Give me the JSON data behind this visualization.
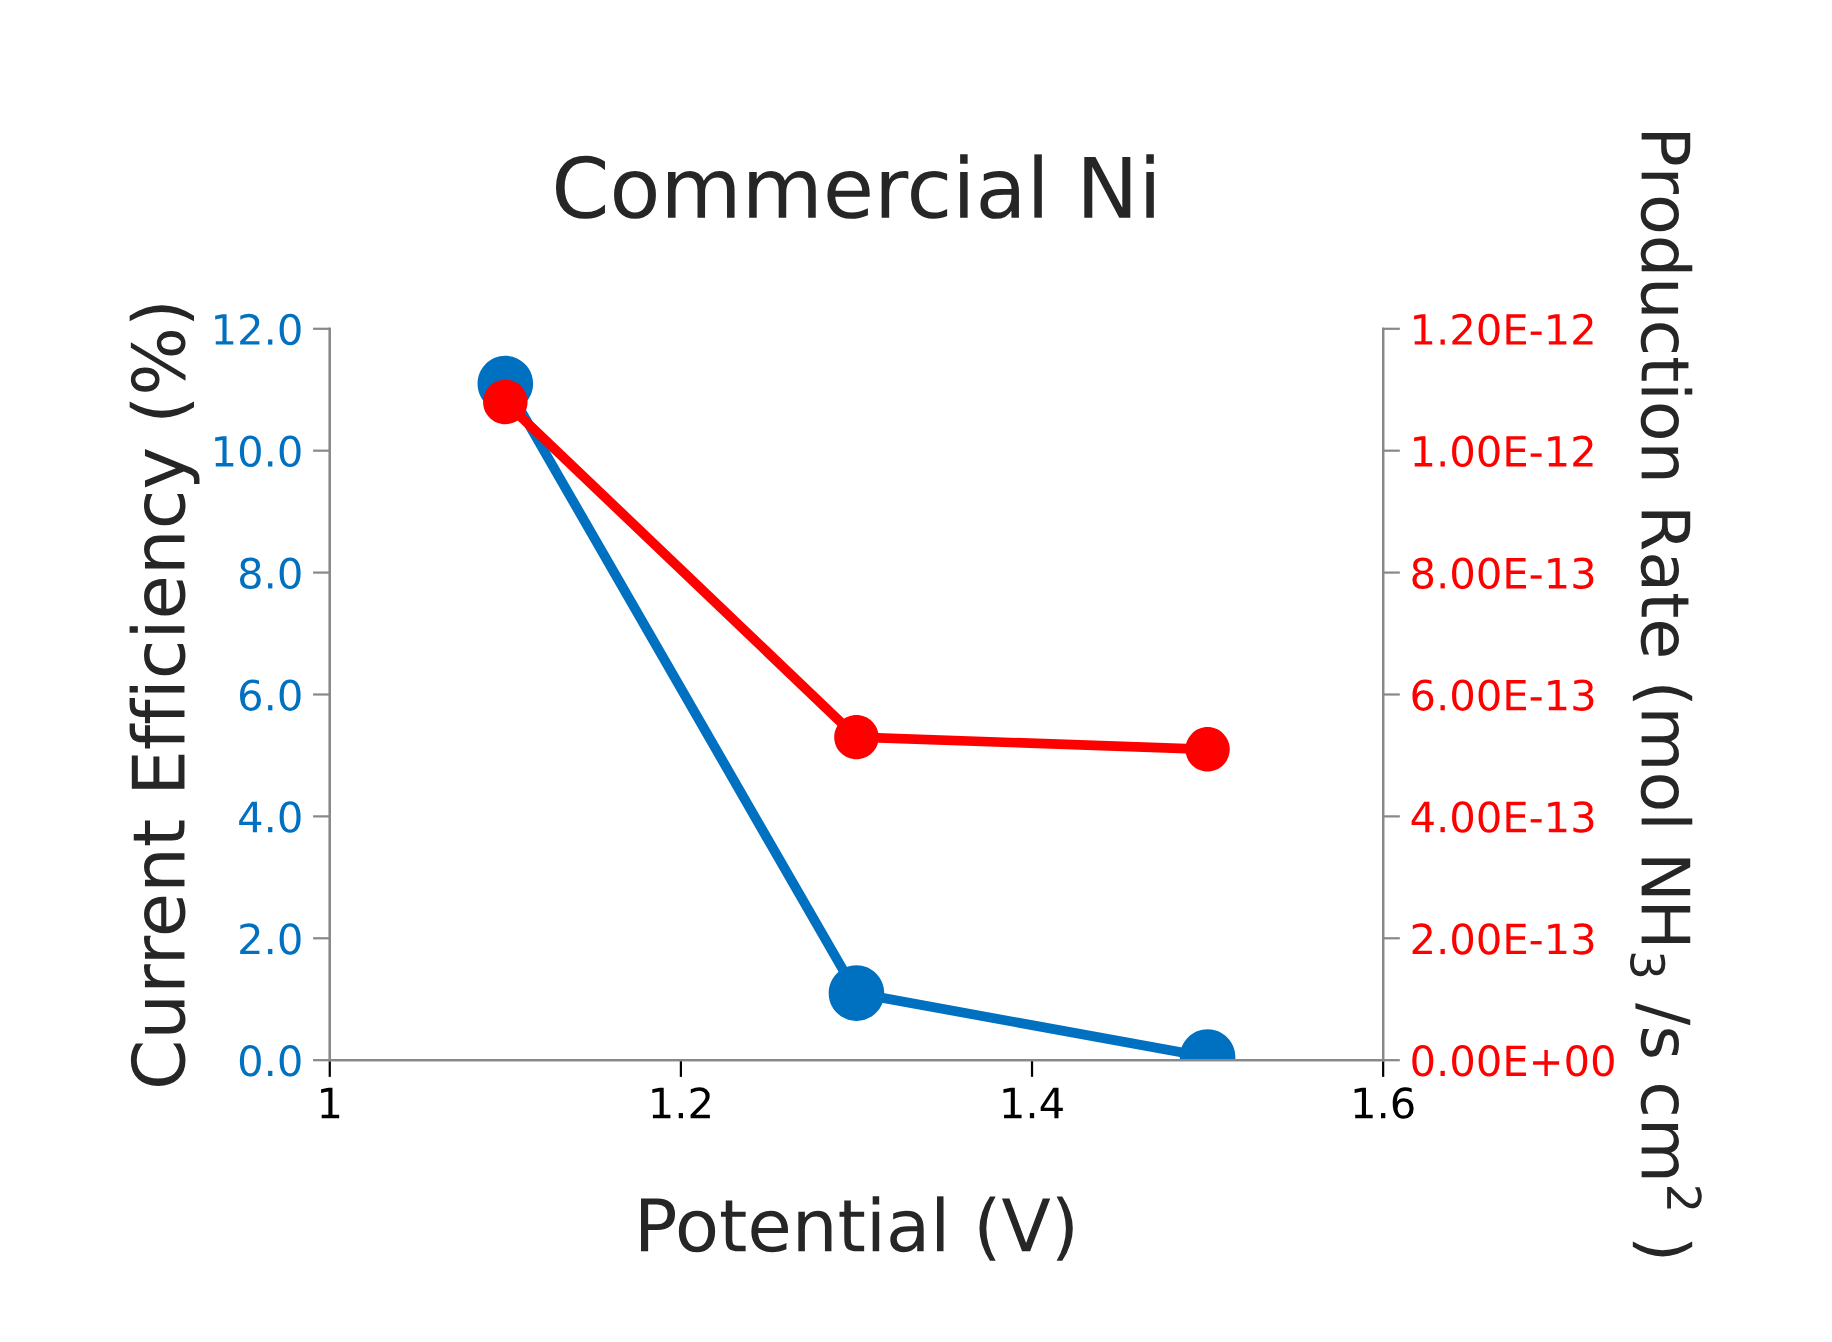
{
  "chart_data": {
    "type": "line",
    "title": "Commercial Ni",
    "xlabel": "Potential (V)",
    "ylabel": "Current Efficiency (%)",
    "y2label": "Production Rate (mol NH$_{3}$ /s cm$^{2}$ )",
    "x": [
      1.1,
      1.3,
      1.5
    ],
    "series": [
      {
        "color": "#0070c0",
        "values": [
          11.1,
          1.1,
          0.05
        ]
      },
      {
        "color": "#ff0000",
        "values": [
          1.08e-12,
          5.3e-13,
          5.1e-13
        ],
        "axis": "y2"
      }
    ],
    "xlim": [
      1,
      1.6
    ],
    "xticks": [
      1,
      1.2,
      1.4,
      1.6
    ],
    "ylim": [
      0,
      12
    ],
    "yticks": [
      {
        "value": 0,
        "label": "0.0"
      },
      {
        "value": 2,
        "label": "2.0"
      },
      {
        "value": 4,
        "label": "4.0"
      },
      {
        "value": 6,
        "label": "6.0"
      },
      {
        "value": 8,
        "label": "8.0"
      },
      {
        "value": 10,
        "label": "10.0"
      },
      {
        "value": 12,
        "label": "12.0"
      }
    ],
    "y2lim": [
      0,
      1.2e-12
    ],
    "y2ticks": [
      {
        "value": 0,
        "label": "0.00E+00"
      },
      {
        "value": 2e-13,
        "label": "2.00E-13"
      },
      {
        "value": 4e-13,
        "label": "4.00E-13"
      },
      {
        "value": 6e-13,
        "label": "6.00E-13"
      },
      {
        "value": 8e-13,
        "label": "8.00E-13"
      },
      {
        "value": 1e-12,
        "label": "1.00E-12"
      },
      {
        "value": 1.2e-12,
        "label": "1.20E-12"
      }
    ],
    "marker": "circle",
    "line_style": "solid",
    "grid": false,
    "legend": false
  }
}
